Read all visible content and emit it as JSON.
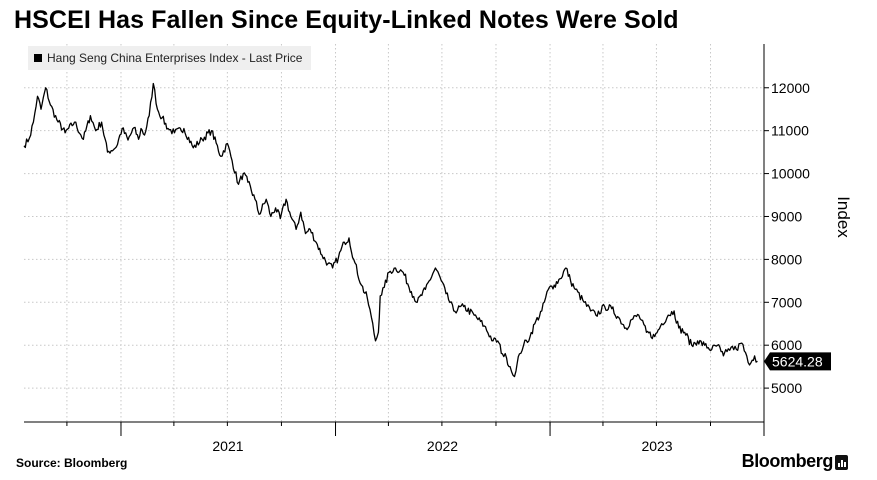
{
  "title": "HSCEI Has Fallen Since Equity-Linked Notes Were Sold",
  "legend_label": "Hang Seng China Enterprises Index - Last Price",
  "source": "Source: Bloomberg",
  "brand": "Bloomberg",
  "colors": {
    "line": "#000000",
    "grid": "#c8c8c8",
    "last_price_bg": "#000000",
    "last_price_text": "#ffffff"
  },
  "icons": [
    "bloomberg-terminal-icon"
  ],
  "chart_data": {
    "type": "line",
    "title": "HSCEI Has Fallen Since Equity-Linked Notes Were Sold",
    "xlabel": "",
    "ylabel": "Index",
    "series": [
      {
        "name": "Hang Seng China Enterprises Index - Last Price",
        "x": [
          "2020-07-20",
          "2020-07-29",
          "2020-08-05",
          "2020-08-12",
          "2020-08-18",
          "2020-08-26",
          "2020-09-03",
          "2020-09-14",
          "2020-09-28",
          "2020-10-14",
          "2020-10-29",
          "2020-11-10",
          "2020-11-19",
          "2020-11-29",
          "2020-12-09",
          "2020-12-24",
          "2021-01-03",
          "2021-01-13",
          "2021-01-23",
          "2021-01-31",
          "2021-02-04",
          "2021-02-10",
          "2021-02-18",
          "2021-02-25",
          "2021-03-04",
          "2021-03-12",
          "2021-03-22",
          "2021-04-02",
          "2021-04-18",
          "2021-05-04",
          "2021-05-19",
          "2021-06-04",
          "2021-06-20",
          "2021-07-01",
          "2021-07-09",
          "2021-07-20",
          "2021-07-28",
          "2021-08-05",
          "2021-08-17",
          "2021-08-24",
          "2021-09-05",
          "2021-09-13",
          "2021-09-21",
          "2021-09-29",
          "2021-10-09",
          "2021-10-17",
          "2021-10-26",
          "2021-11-03",
          "2021-11-11",
          "2021-11-19",
          "2021-11-29",
          "2021-12-09",
          "2021-12-19",
          "2021-12-27",
          "2022-01-06",
          "2022-01-16",
          "2022-01-24",
          "2022-02-01",
          "2022-02-14",
          "2022-02-24",
          "2022-03-03",
          "2022-03-10",
          "2022-03-15",
          "2022-03-18",
          "2022-03-25",
          "2022-04-02",
          "2022-04-13",
          "2022-04-26",
          "2022-05-10",
          "2022-05-20",
          "2022-06-03",
          "2022-06-20",
          "2022-06-30",
          "2022-07-08",
          "2022-07-21",
          "2022-08-07",
          "2022-08-25",
          "2022-09-11",
          "2022-09-26",
          "2022-10-04",
          "2022-10-12",
          "2022-10-19",
          "2022-10-25",
          "2022-10-30",
          "2022-11-04",
          "2022-11-10",
          "2022-11-17",
          "2022-11-28",
          "2022-12-06",
          "2022-12-18",
          "2022-12-29",
          "2023-01-08",
          "2023-01-18",
          "2023-01-28",
          "2023-02-05",
          "2023-02-13",
          "2023-02-28",
          "2023-03-11",
          "2023-03-20",
          "2023-04-04",
          "2023-04-16",
          "2023-04-30",
          "2023-05-10",
          "2023-05-20",
          "2023-06-01",
          "2023-06-14",
          "2023-06-28",
          "2023-07-10",
          "2023-07-21",
          "2023-07-31",
          "2023-08-08",
          "2023-08-18",
          "2023-08-30",
          "2023-09-09",
          "2023-09-21",
          "2023-10-03",
          "2023-10-13",
          "2023-10-19",
          "2023-10-23",
          "2023-10-29",
          "2023-11-05",
          "2023-11-14",
          "2023-11-23",
          "2023-12-04",
          "2023-12-11",
          "2023-12-15",
          "2023-12-20"
        ],
        "values": [
          10650,
          10820,
          11200,
          11800,
          11500,
          12000,
          11600,
          11250,
          10950,
          11200,
          10800,
          11350,
          11000,
          11200,
          10500,
          10620,
          11050,
          10780,
          11070,
          10800,
          11050,
          10900,
          11350,
          12100,
          11500,
          11300,
          11050,
          10950,
          11050,
          10600,
          10800,
          11000,
          10400,
          10700,
          10300,
          9750,
          10000,
          9800,
          9400,
          9050,
          9400,
          9000,
          9200,
          8950,
          9400,
          9000,
          8700,
          9100,
          8600,
          8700,
          8400,
          8100,
          7900,
          7800,
          8050,
          8400,
          8500,
          8000,
          7400,
          7100,
          6650,
          6100,
          6300,
          7150,
          7350,
          7700,
          7800,
          7700,
          7250,
          7000,
          7300,
          7800,
          7500,
          7200,
          6800,
          6900,
          6700,
          6450,
          6100,
          6100,
          5800,
          5700,
          5500,
          5300,
          5400,
          5800,
          6000,
          6200,
          6500,
          6800,
          7300,
          7400,
          7550,
          7800,
          7500,
          7300,
          7000,
          6800,
          6700,
          6900,
          6850,
          6600,
          6400,
          6600,
          6700,
          6300,
          6200,
          6500,
          6700,
          6800,
          6400,
          6300,
          6000,
          6100,
          6000,
          5900,
          6000,
          5850,
          5750,
          5850,
          5950,
          5900,
          6050,
          5600,
          5650,
          5750,
          5624.28
        ]
      }
    ],
    "ylim": [
      4300,
      13000
    ],
    "yticks": [
      5000,
      6000,
      7000,
      8000,
      9000,
      10000,
      11000,
      12000
    ],
    "ytick_labels": [
      "5000",
      "6000",
      "7000",
      "8000",
      "9000",
      "10000",
      "11000",
      "12000"
    ],
    "xlim": [
      "2020-07-20",
      "2023-12-31"
    ],
    "x_year_labels": [
      {
        "label": "2021",
        "center": "2021-07-02"
      },
      {
        "label": "2022",
        "center": "2022-07-02"
      },
      {
        "label": "2023",
        "center": "2023-07-02"
      }
    ],
    "x_gridlines": [
      "2020-10-01",
      "2021-01-01",
      "2021-04-01",
      "2021-07-01",
      "2021-10-01",
      "2022-01-01",
      "2022-04-01",
      "2022-07-01",
      "2022-10-01",
      "2023-01-01",
      "2023-04-01",
      "2023-07-01",
      "2023-10-01"
    ],
    "x_year_boundaries": [
      "2021-01-01",
      "2022-01-01",
      "2023-01-01",
      "2024-01-01"
    ],
    "last_value": 5624.28,
    "last_value_label": "5624.28",
    "grid": true,
    "legend_position": "top-left",
    "y_axis_side": "right"
  }
}
